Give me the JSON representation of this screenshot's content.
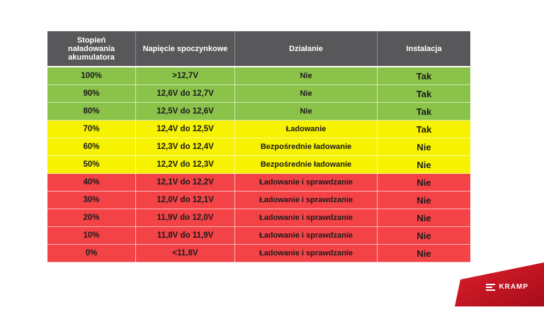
{
  "table": {
    "headers": [
      "Stopień naładowania akumulatora",
      "Napięcie spoczynkowe",
      "Działanie",
      "Instalacja"
    ],
    "header_lines": {
      "col0": [
        "Stopień",
        "naładowania",
        "akumulatora"
      ]
    },
    "rows": [
      {
        "charge": "100%",
        "voltage": ">12,7V",
        "action": "Nie",
        "install": "Tak",
        "status": "green"
      },
      {
        "charge": "90%",
        "voltage": "12,6V do 12,7V",
        "action": "Nie",
        "install": "Tak",
        "status": "green"
      },
      {
        "charge": "80%",
        "voltage": "12,5V do 12,6V",
        "action": "Nie",
        "install": "Tak",
        "status": "green"
      },
      {
        "charge": "70%",
        "voltage": "12,4V do 12,5V",
        "action": "Ładowanie",
        "install": "Tak",
        "status": "yellow"
      },
      {
        "charge": "60%",
        "voltage": "12,3V do 12,4V",
        "action": "Bezpośrednie ładowanie",
        "install": "Nie",
        "status": "yellow"
      },
      {
        "charge": "50%",
        "voltage": "12,2V do 12,3V",
        "action": "Bezpośrednie ładowanie",
        "install": "Nie",
        "status": "yellow"
      },
      {
        "charge": "40%",
        "voltage": "12,1V do 12,2V",
        "action": "Ładowanie i sprawdzanie",
        "install": "Nie",
        "status": "red"
      },
      {
        "charge": "30%",
        "voltage": "12,0V do 12,1V",
        "action": "Ładowanie i sprawdzanie",
        "install": "Nie",
        "status": "red"
      },
      {
        "charge": "20%",
        "voltage": "11,9V do 12,0V",
        "action": "Ładowanie i sprawdzanie",
        "install": "Nie",
        "status": "red"
      },
      {
        "charge": "10%",
        "voltage": "11,8V do 11,9V",
        "action": "Ładowanie i sprawdzanie",
        "install": "Nie",
        "status": "red"
      },
      {
        "charge": "0%",
        "voltage": "<11,8V",
        "action": "Ładowanie i sprawdzanie",
        "install": "Nie",
        "status": "red"
      }
    ]
  },
  "colors": {
    "header": "#58585a",
    "green": "#8bc34a",
    "yellow": "#f7f200",
    "red": "#f44347",
    "brand": "#c8102e"
  },
  "brand": {
    "name": "KRAMP",
    "icon": "kramp-logo-icon"
  }
}
